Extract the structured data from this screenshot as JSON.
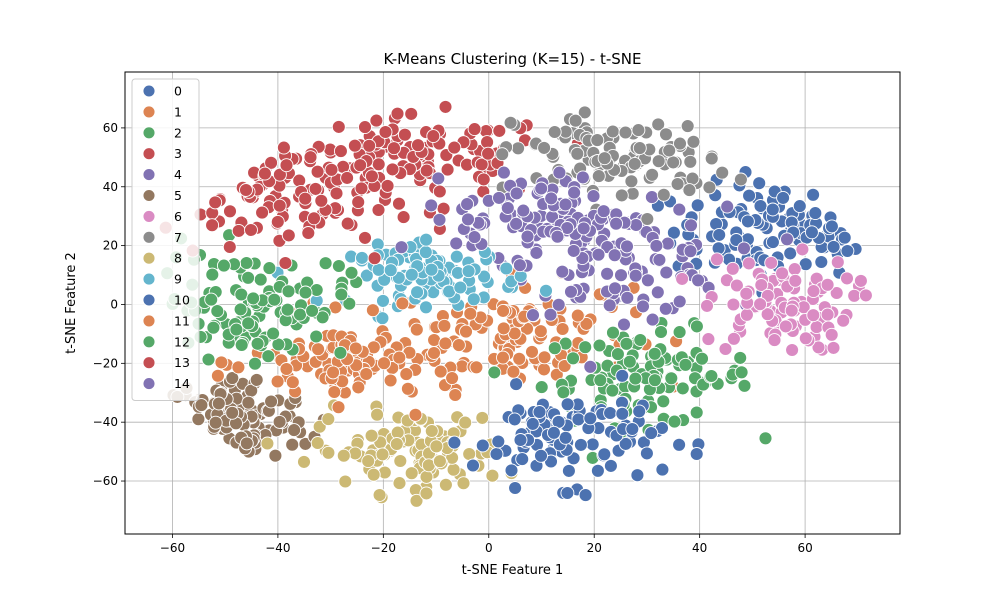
{
  "chart_data": {
    "type": "scatter",
    "title": "K-Means Clustering (K=15) - t-SNE",
    "xlabel": "t-SNE Feature 1",
    "ylabel": "t-SNE Feature 2",
    "xlim": [
      -69,
      78
    ],
    "ylim": [
      -78,
      79
    ],
    "xticks": [
      -60,
      -40,
      -20,
      0,
      20,
      40,
      60
    ],
    "yticks": [
      -60,
      -40,
      -20,
      0,
      20,
      40,
      60
    ],
    "grid": true,
    "legend_position": "upper-left",
    "series": [
      {
        "name": "0",
        "color": "#4c72b0",
        "center": [
          55,
          25
        ],
        "spread": [
          10,
          8
        ],
        "count": 110
      },
      {
        "name": "1",
        "color": "#dd8452",
        "center": [
          5,
          -10
        ],
        "spread": [
          11,
          9
        ],
        "count": 120
      },
      {
        "name": "2",
        "color": "#55a868",
        "center": [
          30,
          -25
        ],
        "spread": [
          10,
          8
        ],
        "count": 110
      },
      {
        "name": "3",
        "color": "#c44e52",
        "center": [
          -12,
          50
        ],
        "spread": [
          12,
          7
        ],
        "count": 110
      },
      {
        "name": "4",
        "color": "#8172b3",
        "center": [
          25,
          15
        ],
        "spread": [
          10,
          9
        ],
        "count": 110
      },
      {
        "name": "5",
        "color": "#937860",
        "center": [
          -48,
          -40
        ],
        "spread": [
          7,
          8
        ],
        "count": 110
      },
      {
        "name": "6",
        "color": "#da8bc3",
        "center": [
          55,
          0
        ],
        "spread": [
          7,
          8
        ],
        "count": 100
      },
      {
        "name": "7",
        "color": "#8c8c8c",
        "center": [
          25,
          50
        ],
        "spread": [
          10,
          8
        ],
        "count": 110
      },
      {
        "name": "8",
        "color": "#ccb974",
        "center": [
          -15,
          -50
        ],
        "spread": [
          9,
          7
        ],
        "count": 110
      },
      {
        "name": "9",
        "color": "#64b5cd",
        "center": [
          -10,
          10
        ],
        "spread": [
          8,
          5
        ],
        "count": 100
      },
      {
        "name": "10",
        "color": "#4c72b0",
        "center": [
          15,
          -45
        ],
        "spread": [
          9,
          8
        ],
        "count": 110
      },
      {
        "name": "11",
        "color": "#dd8452",
        "center": [
          -25,
          -20
        ],
        "spread": [
          10,
          7
        ],
        "count": 110
      },
      {
        "name": "12",
        "color": "#55a868",
        "center": [
          -45,
          0
        ],
        "spread": [
          9,
          9
        ],
        "count": 110
      },
      {
        "name": "13",
        "color": "#c44e52",
        "center": [
          -40,
          35
        ],
        "spread": [
          11,
          9
        ],
        "count": 110
      },
      {
        "name": "14",
        "color": "#8172b3",
        "center": [
          10,
          30
        ],
        "spread": [
          8,
          7
        ],
        "count": 100
      }
    ]
  }
}
